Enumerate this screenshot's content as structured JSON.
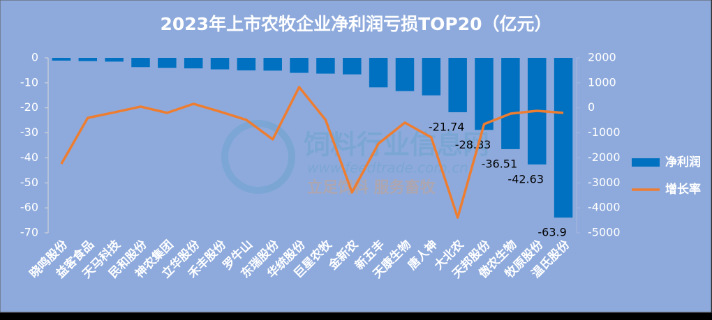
{
  "chart_data": {
    "type": "bar-line",
    "title": "2023年上市农牧企业净利润亏损TOP20（亿元）",
    "watermark": [
      "饲料行业信息网",
      "www.feedtrade.com.cn",
      "立足饲料  服务畜牧"
    ],
    "categories": [
      "晓鸣股份",
      "益客食品",
      "天马科技",
      "民和股份",
      "神农集团",
      "立华股份",
      "禾丰股份",
      "罗牛山",
      "东瑞股份",
      "华统股份",
      "巨星农牧",
      "金新农",
      "新五丰",
      "天康生物",
      "唐人神",
      "大北农",
      "天邦股份",
      "傲农生物",
      "牧原股份",
      "温氏股份"
    ],
    "series": [
      {
        "name": "净利润",
        "type": "bar",
        "color": "#0070c0",
        "values": [
          -1.1,
          -1.3,
          -1.5,
          -3.7,
          -4.0,
          -4.2,
          -4.6,
          -5.0,
          -5.1,
          -6.0,
          -6.3,
          -6.6,
          -11.8,
          -13.3,
          -15.0,
          -21.74,
          -28.83,
          -36.51,
          -42.63,
          -63.9
        ],
        "value_labels": [
          null,
          null,
          null,
          null,
          null,
          null,
          null,
          null,
          null,
          null,
          null,
          null,
          null,
          null,
          null,
          "-21.74",
          "-28.83",
          "-36.51",
          "-42.63",
          "-63.9"
        ]
      },
      {
        "name": "增长率",
        "type": "line",
        "axis": "y2",
        "color": "#ed7d31",
        "values": [
          -2240,
          -400,
          -180,
          50,
          -200,
          160,
          -150,
          -480,
          -1260,
          830,
          -480,
          -3380,
          -1430,
          -590,
          -1180,
          -4390,
          -650,
          -230,
          -120,
          -200
        ]
      }
    ],
    "ylim": [
      -70,
      0
    ],
    "yticks": [
      0,
      -10,
      -20,
      -30,
      -40,
      -50,
      -60,
      -70
    ],
    "y2lim": [
      -5000,
      2000
    ],
    "y2ticks": [
      2000,
      1000,
      0,
      -1000,
      -2000,
      -3000,
      -4000,
      -5000
    ],
    "legend": "right",
    "grid": false
  }
}
